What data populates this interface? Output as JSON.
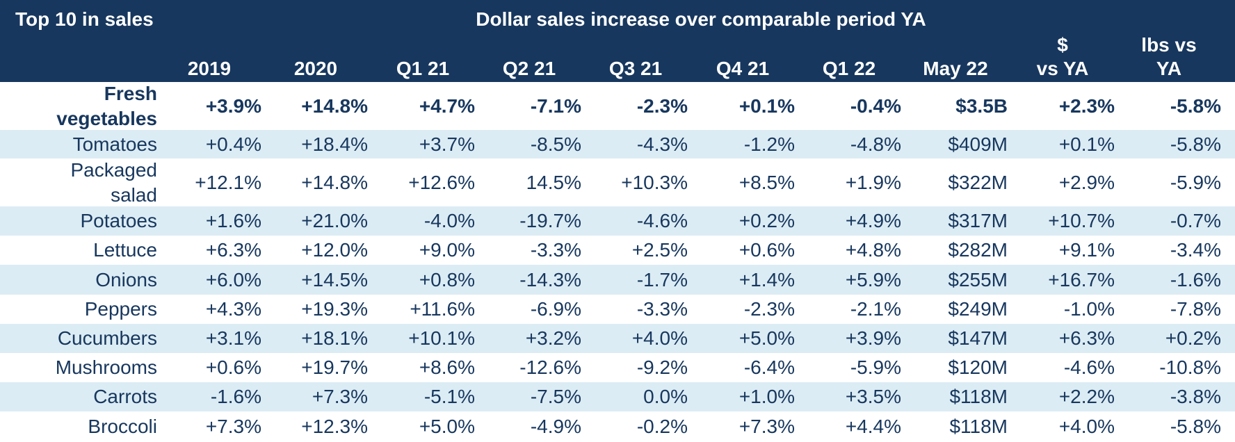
{
  "header": {
    "left_title": "Top 10 in sales",
    "center_title": "Dollar sales increase over comparable period YA",
    "columns": [
      [
        "2019"
      ],
      [
        "2020"
      ],
      [
        "Q1 21"
      ],
      [
        "Q2 21"
      ],
      [
        "Q3 21"
      ],
      [
        "Q4 21"
      ],
      [
        "Q1 22"
      ],
      [
        "May 22"
      ],
      [
        "$",
        "vs YA"
      ],
      [
        "lbs vs",
        "YA"
      ]
    ]
  },
  "rows": [
    {
      "label": [
        "Fresh",
        "vegetables"
      ],
      "values": [
        "+3.9%",
        "+14.8%",
        "+4.7%",
        "-7.1%",
        "-2.3%",
        "+0.1%",
        "-0.4%",
        "$3.5B",
        "+2.3%",
        "-5.8%"
      ]
    },
    {
      "label": [
        "Tomatoes"
      ],
      "values": [
        "+0.4%",
        "+18.4%",
        "+3.7%",
        "-8.5%",
        "-4.3%",
        "-1.2%",
        "-4.8%",
        "$409M",
        "+0.1%",
        "-5.8%"
      ]
    },
    {
      "label": [
        "Packaged",
        "salad"
      ],
      "values": [
        "+12.1%",
        "+14.8%",
        "+12.6%",
        "14.5%",
        "+10.3%",
        "+8.5%",
        "+1.9%",
        "$322M",
        "+2.9%",
        "-5.9%"
      ]
    },
    {
      "label": [
        "Potatoes"
      ],
      "values": [
        "+1.6%",
        "+21.0%",
        "-4.0%",
        "-19.7%",
        "-4.6%",
        "+0.2%",
        "+4.9%",
        "$317M",
        "+10.7%",
        "-0.7%"
      ]
    },
    {
      "label": [
        "Lettuce"
      ],
      "values": [
        "+6.3%",
        "+12.0%",
        "+9.0%",
        "-3.3%",
        "+2.5%",
        "+0.6%",
        "+4.8%",
        "$282M",
        "+9.1%",
        "-3.4%"
      ]
    },
    {
      "label": [
        "Onions"
      ],
      "values": [
        "+6.0%",
        "+14.5%",
        "+0.8%",
        "-14.3%",
        "-1.7%",
        "+1.4%",
        "+5.9%",
        "$255M",
        "+16.7%",
        "-1.6%"
      ]
    },
    {
      "label": [
        "Peppers"
      ],
      "values": [
        "+4.3%",
        "+19.3%",
        "+11.6%",
        "-6.9%",
        "-3.3%",
        "-2.3%",
        "-2.1%",
        "$249M",
        "-1.0%",
        "-7.8%"
      ]
    },
    {
      "label": [
        "Cucumbers"
      ],
      "values": [
        "+3.1%",
        "+18.1%",
        "+10.1%",
        "+3.2%",
        "+4.0%",
        "+5.0%",
        "+3.9%",
        "$147M",
        "+6.3%",
        "+0.2%"
      ]
    },
    {
      "label": [
        "Mushrooms"
      ],
      "values": [
        "+0.6%",
        "+19.7%",
        "+8.6%",
        "-12.6%",
        "-9.2%",
        "-6.4%",
        "-5.9%",
        "$120M",
        "-4.6%",
        "-10.8%"
      ]
    },
    {
      "label": [
        "Carrots"
      ],
      "values": [
        "-1.6%",
        "+7.3%",
        "-5.1%",
        "-7.5%",
        "0.0%",
        "+1.0%",
        "+3.5%",
        "$118M",
        "+2.2%",
        "-3.8%"
      ]
    },
    {
      "label": [
        "Broccoli"
      ],
      "values": [
        "+7.3%",
        "+12.3%",
        "+5.0%",
        "-4.9%",
        "-0.2%",
        "+7.3%",
        "+4.4%",
        "$118M",
        "+4.0%",
        "-5.8%"
      ]
    }
  ],
  "colors": {
    "header_bg": "#17375e",
    "header_text": "#ffffff",
    "body_text": "#17375e",
    "alt_row_bg": "#dcecf4"
  }
}
